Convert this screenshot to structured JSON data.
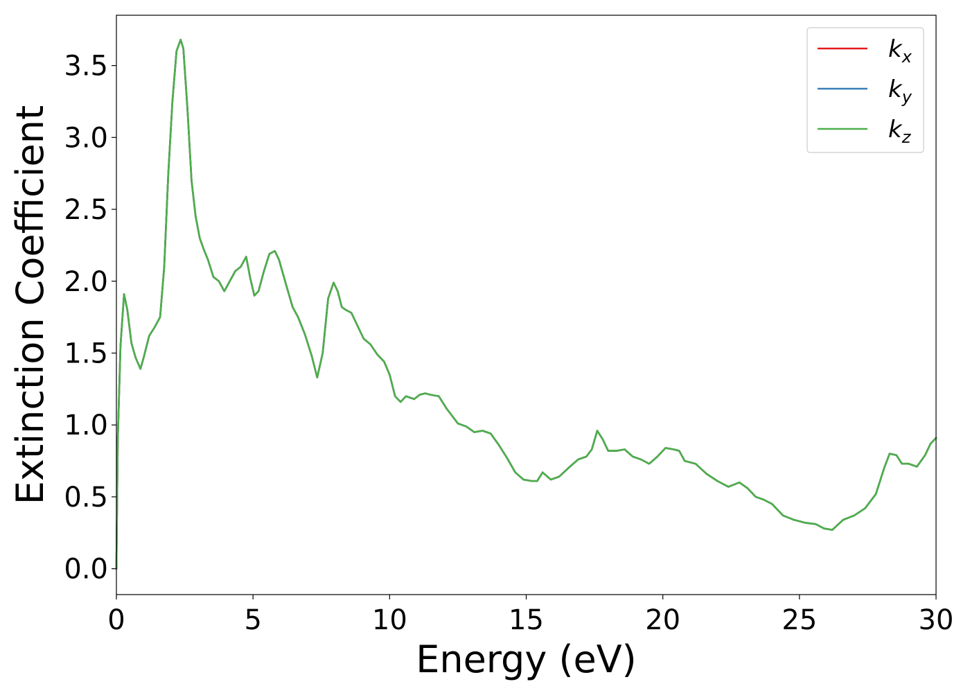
{
  "chart_data": {
    "type": "line",
    "xlabel": "Energy (eV)",
    "ylabel": "Extinction Coefficient",
    "xlim": [
      0,
      30
    ],
    "ylim": [
      -0.18,
      3.85
    ],
    "xticks": [
      0,
      5,
      10,
      15,
      20,
      25,
      30
    ],
    "xtick_labels": [
      "0",
      "5",
      "10",
      "15",
      "20",
      "25",
      "30"
    ],
    "yticks": [
      0.0,
      0.5,
      1.0,
      1.5,
      2.0,
      2.5,
      3.0,
      3.5
    ],
    "ytick_labels": [
      "0.0",
      "0.5",
      "1.0",
      "1.5",
      "2.0",
      "2.5",
      "3.0",
      "3.5"
    ],
    "grid": false,
    "legend_position": "top-right",
    "x": [
      0,
      0.05,
      0.15,
      0.28,
      0.4,
      0.55,
      0.7,
      0.88,
      1.0,
      1.2,
      1.4,
      1.6,
      1.75,
      1.9,
      2.05,
      2.2,
      2.35,
      2.45,
      2.6,
      2.75,
      2.9,
      3.05,
      3.2,
      3.35,
      3.55,
      3.75,
      3.95,
      4.15,
      4.35,
      4.55,
      4.75,
      4.9,
      5.05,
      5.2,
      5.4,
      5.6,
      5.8,
      5.95,
      6.1,
      6.25,
      6.45,
      6.65,
      6.9,
      7.15,
      7.35,
      7.55,
      7.75,
      7.95,
      8.1,
      8.25,
      8.4,
      8.6,
      8.8,
      9.05,
      9.3,
      9.55,
      9.8,
      10.0,
      10.2,
      10.4,
      10.6,
      10.9,
      11.1,
      11.3,
      11.5,
      11.8,
      12.1,
      12.3,
      12.5,
      12.8,
      13.1,
      13.4,
      13.7,
      14.0,
      14.3,
      14.6,
      14.9,
      15.2,
      15.4,
      15.6,
      15.9,
      16.2,
      16.6,
      16.9,
      17.2,
      17.4,
      17.6,
      17.8,
      18.0,
      18.3,
      18.6,
      18.9,
      19.2,
      19.5,
      19.8,
      20.1,
      20.4,
      20.6,
      20.8,
      21.2,
      21.6,
      22.0,
      22.4,
      22.8,
      23.1,
      23.4,
      23.7,
      24.0,
      24.4,
      24.8,
      25.2,
      25.6,
      25.9,
      26.2,
      26.6,
      27.0,
      27.4,
      27.8,
      28.1,
      28.3,
      28.55,
      28.75,
      29.0,
      29.3,
      29.6,
      29.8,
      30.0
    ],
    "series": [
      {
        "name": "kx",
        "color": "#e41a1c",
        "values": [
          0.0,
          0.9,
          1.55,
          1.91,
          1.8,
          1.57,
          1.47,
          1.39,
          1.47,
          1.62,
          1.68,
          1.75,
          2.1,
          2.75,
          3.25,
          3.6,
          3.68,
          3.62,
          3.2,
          2.7,
          2.45,
          2.3,
          2.22,
          2.15,
          2.03,
          2.0,
          1.93,
          2.0,
          2.07,
          2.1,
          2.17,
          2.02,
          1.9,
          1.93,
          2.07,
          2.19,
          2.21,
          2.15,
          2.05,
          1.95,
          1.82,
          1.75,
          1.63,
          1.48,
          1.33,
          1.5,
          1.88,
          1.99,
          1.93,
          1.82,
          1.8,
          1.78,
          1.7,
          1.6,
          1.56,
          1.49,
          1.44,
          1.35,
          1.2,
          1.16,
          1.2,
          1.18,
          1.21,
          1.22,
          1.21,
          1.2,
          1.11,
          1.06,
          1.01,
          0.99,
          0.95,
          0.96,
          0.94,
          0.86,
          0.77,
          0.67,
          0.62,
          0.61,
          0.61,
          0.67,
          0.62,
          0.64,
          0.71,
          0.76,
          0.78,
          0.83,
          0.96,
          0.9,
          0.82,
          0.82,
          0.83,
          0.78,
          0.76,
          0.73,
          0.78,
          0.84,
          0.83,
          0.82,
          0.75,
          0.73,
          0.66,
          0.61,
          0.57,
          0.6,
          0.56,
          0.5,
          0.48,
          0.45,
          0.37,
          0.34,
          0.32,
          0.31,
          0.28,
          0.27,
          0.34,
          0.37,
          0.42,
          0.52,
          0.7,
          0.8,
          0.79,
          0.73,
          0.73,
          0.71,
          0.79,
          0.87,
          0.91
        ]
      },
      {
        "name": "ky",
        "color": "#377eb8",
        "values": [
          0.0,
          0.9,
          1.55,
          1.91,
          1.8,
          1.57,
          1.47,
          1.39,
          1.47,
          1.62,
          1.68,
          1.75,
          2.1,
          2.75,
          3.25,
          3.6,
          3.68,
          3.62,
          3.2,
          2.7,
          2.45,
          2.3,
          2.22,
          2.15,
          2.03,
          2.0,
          1.93,
          2.0,
          2.07,
          2.1,
          2.17,
          2.02,
          1.9,
          1.93,
          2.07,
          2.19,
          2.21,
          2.15,
          2.05,
          1.95,
          1.82,
          1.75,
          1.63,
          1.48,
          1.33,
          1.5,
          1.88,
          1.99,
          1.93,
          1.82,
          1.8,
          1.78,
          1.7,
          1.6,
          1.56,
          1.49,
          1.44,
          1.35,
          1.2,
          1.16,
          1.2,
          1.18,
          1.21,
          1.22,
          1.21,
          1.2,
          1.11,
          1.06,
          1.01,
          0.99,
          0.95,
          0.96,
          0.94,
          0.86,
          0.77,
          0.67,
          0.62,
          0.61,
          0.61,
          0.67,
          0.62,
          0.64,
          0.71,
          0.76,
          0.78,
          0.83,
          0.96,
          0.9,
          0.82,
          0.82,
          0.83,
          0.78,
          0.76,
          0.73,
          0.78,
          0.84,
          0.83,
          0.82,
          0.75,
          0.73,
          0.66,
          0.61,
          0.57,
          0.6,
          0.56,
          0.5,
          0.48,
          0.45,
          0.37,
          0.34,
          0.32,
          0.31,
          0.28,
          0.27,
          0.34,
          0.37,
          0.42,
          0.52,
          0.7,
          0.8,
          0.79,
          0.73,
          0.73,
          0.71,
          0.79,
          0.87,
          0.91
        ]
      },
      {
        "name": "kz",
        "color": "#4daf4a",
        "values": [
          0.0,
          0.9,
          1.55,
          1.91,
          1.8,
          1.57,
          1.47,
          1.39,
          1.47,
          1.62,
          1.68,
          1.75,
          2.1,
          2.75,
          3.25,
          3.6,
          3.68,
          3.62,
          3.2,
          2.7,
          2.45,
          2.3,
          2.22,
          2.15,
          2.03,
          2.0,
          1.93,
          2.0,
          2.07,
          2.1,
          2.17,
          2.02,
          1.9,
          1.93,
          2.07,
          2.19,
          2.21,
          2.15,
          2.05,
          1.95,
          1.82,
          1.75,
          1.63,
          1.48,
          1.33,
          1.5,
          1.88,
          1.99,
          1.93,
          1.82,
          1.8,
          1.78,
          1.7,
          1.6,
          1.56,
          1.49,
          1.44,
          1.35,
          1.2,
          1.16,
          1.2,
          1.18,
          1.21,
          1.22,
          1.21,
          1.2,
          1.11,
          1.06,
          1.01,
          0.99,
          0.95,
          0.96,
          0.94,
          0.86,
          0.77,
          0.67,
          0.62,
          0.61,
          0.61,
          0.67,
          0.62,
          0.64,
          0.71,
          0.76,
          0.78,
          0.83,
          0.96,
          0.9,
          0.82,
          0.82,
          0.83,
          0.78,
          0.76,
          0.73,
          0.78,
          0.84,
          0.83,
          0.82,
          0.75,
          0.73,
          0.66,
          0.61,
          0.57,
          0.6,
          0.56,
          0.5,
          0.48,
          0.45,
          0.37,
          0.34,
          0.32,
          0.31,
          0.28,
          0.27,
          0.34,
          0.37,
          0.42,
          0.52,
          0.7,
          0.8,
          0.79,
          0.73,
          0.73,
          0.71,
          0.79,
          0.87,
          0.91
        ]
      }
    ],
    "legend": [
      {
        "symbol": "k",
        "subscript": "x",
        "color": "#e41a1c"
      },
      {
        "symbol": "k",
        "subscript": "y",
        "color": "#377eb8"
      },
      {
        "symbol": "k",
        "subscript": "z",
        "color": "#4daf4a"
      }
    ]
  }
}
